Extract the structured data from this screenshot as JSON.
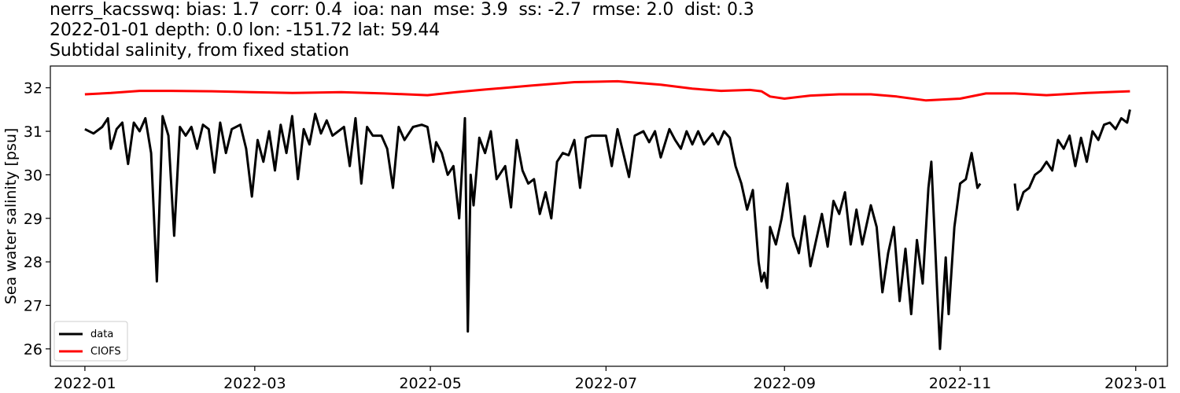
{
  "title_lines": [
    "nerrs_kacsswq: bias: 1.7  corr: 0.4  ioa: nan  mse: 3.9  ss: -2.7  rmse: 2.0  dist: 0.3",
    "2022-01-01 depth: 0.0 lon: -151.72 lat: 59.44",
    "Subtidal salinity, from fixed station"
  ],
  "colors": {
    "data": "#000000",
    "model": "#ff0000",
    "axes": "#000000"
  },
  "chart_data": {
    "type": "line",
    "title": "nerrs_kacsswq: bias: 1.7  corr: 0.4  ioa: nan  mse: 3.9  ss: -2.7  rmse: 2.0  dist: 0.3\n2022-01-01 depth: 0.0 lon: -151.72 lat: 59.44\nSubtidal salinity, from fixed station",
    "xlabel": "",
    "ylabel": "Sea water salinity [psu]",
    "x_type": "date",
    "xlim": [
      "2021-12-20",
      "2023-01-12"
    ],
    "ylim": [
      25.6,
      32.5
    ],
    "xticks": [
      "2022-01",
      "2022-03",
      "2022-05",
      "2022-07",
      "2022-09",
      "2022-11",
      "2023-01"
    ],
    "yticks": [
      26,
      27,
      28,
      29,
      30,
      31,
      32
    ],
    "grid": false,
    "legend": {
      "position": "lower-left",
      "entries": [
        "data",
        "CIOFS"
      ]
    },
    "series": [
      {
        "name": "data",
        "color": "#000000",
        "points": [
          [
            "2022-01-01",
            31.05
          ],
          [
            "2022-01-04",
            30.95
          ],
          [
            "2022-01-07",
            31.1
          ],
          [
            "2022-01-09",
            31.3
          ],
          [
            "2022-01-10",
            30.6
          ],
          [
            "2022-01-12",
            31.05
          ],
          [
            "2022-01-14",
            31.2
          ],
          [
            "2022-01-15",
            30.7
          ],
          [
            "2022-01-16",
            30.25
          ],
          [
            "2022-01-18",
            31.2
          ],
          [
            "2022-01-20",
            31.0
          ],
          [
            "2022-01-22",
            31.3
          ],
          [
            "2022-01-24",
            30.5
          ],
          [
            "2022-01-26",
            27.55
          ],
          [
            "2022-01-28",
            31.35
          ],
          [
            "2022-01-30",
            30.9
          ],
          [
            "2022-02-01",
            28.6
          ],
          [
            "2022-02-03",
            31.1
          ],
          [
            "2022-02-05",
            30.9
          ],
          [
            "2022-02-07",
            31.1
          ],
          [
            "2022-02-09",
            30.6
          ],
          [
            "2022-02-11",
            31.15
          ],
          [
            "2022-02-13",
            31.05
          ],
          [
            "2022-02-15",
            30.05
          ],
          [
            "2022-02-17",
            31.2
          ],
          [
            "2022-02-19",
            30.5
          ],
          [
            "2022-02-21",
            31.05
          ],
          [
            "2022-02-24",
            31.15
          ],
          [
            "2022-02-26",
            30.6
          ],
          [
            "2022-02-28",
            29.5
          ],
          [
            "2022-03-02",
            30.8
          ],
          [
            "2022-03-04",
            30.3
          ],
          [
            "2022-03-06",
            31.0
          ],
          [
            "2022-03-08",
            30.1
          ],
          [
            "2022-03-10",
            31.15
          ],
          [
            "2022-03-12",
            30.5
          ],
          [
            "2022-03-14",
            31.35
          ],
          [
            "2022-03-16",
            29.9
          ],
          [
            "2022-03-18",
            31.05
          ],
          [
            "2022-03-20",
            30.7
          ],
          [
            "2022-03-22",
            31.4
          ],
          [
            "2022-03-24",
            30.95
          ],
          [
            "2022-03-26",
            31.25
          ],
          [
            "2022-03-28",
            30.9
          ],
          [
            "2022-04-01",
            31.1
          ],
          [
            "2022-04-03",
            30.2
          ],
          [
            "2022-04-05",
            31.3
          ],
          [
            "2022-04-07",
            29.8
          ],
          [
            "2022-04-09",
            31.1
          ],
          [
            "2022-04-11",
            30.9
          ],
          [
            "2022-04-14",
            30.9
          ],
          [
            "2022-04-16",
            30.6
          ],
          [
            "2022-04-18",
            29.7
          ],
          [
            "2022-04-20",
            31.1
          ],
          [
            "2022-04-22",
            30.8
          ],
          [
            "2022-04-25",
            31.1
          ],
          [
            "2022-04-28",
            31.15
          ],
          [
            "2022-04-30",
            31.1
          ],
          [
            "2022-05-02",
            30.3
          ],
          [
            "2022-05-03",
            30.75
          ],
          [
            "2022-05-05",
            30.5
          ],
          [
            "2022-05-07",
            30.0
          ],
          [
            "2022-05-09",
            30.2
          ],
          [
            "2022-05-11",
            29.0
          ],
          [
            "2022-05-13",
            31.3
          ],
          [
            "2022-05-14",
            26.4
          ],
          [
            "2022-05-15",
            30.0
          ],
          [
            "2022-05-16",
            29.3
          ],
          [
            "2022-05-18",
            30.85
          ],
          [
            "2022-05-20",
            30.5
          ],
          [
            "2022-05-22",
            31.0
          ],
          [
            "2022-05-24",
            29.9
          ],
          [
            "2022-05-27",
            30.2
          ],
          [
            "2022-05-29",
            29.25
          ],
          [
            "2022-05-31",
            30.8
          ],
          [
            "2022-06-02",
            30.1
          ],
          [
            "2022-06-04",
            29.8
          ],
          [
            "2022-06-06",
            29.9
          ],
          [
            "2022-06-08",
            29.1
          ],
          [
            "2022-06-10",
            29.6
          ],
          [
            "2022-06-12",
            29.0
          ],
          [
            "2022-06-14",
            30.3
          ],
          [
            "2022-06-16",
            30.5
          ],
          [
            "2022-06-18",
            30.45
          ],
          [
            "2022-06-20",
            30.8
          ],
          [
            "2022-06-22",
            29.7
          ],
          [
            "2022-06-24",
            30.85
          ],
          [
            "2022-06-26",
            30.9
          ],
          [
            "2022-06-29",
            30.9
          ],
          [
            "2022-07-01",
            30.9
          ],
          [
            "2022-07-03",
            30.2
          ],
          [
            "2022-07-05",
            31.05
          ],
          [
            "2022-07-07",
            30.5
          ],
          [
            "2022-07-09",
            29.95
          ],
          [
            "2022-07-11",
            30.9
          ],
          [
            "2022-07-14",
            31.0
          ],
          [
            "2022-07-16",
            30.75
          ],
          [
            "2022-07-18",
            31.0
          ],
          [
            "2022-07-20",
            30.4
          ],
          [
            "2022-07-23",
            31.05
          ],
          [
            "2022-07-25",
            30.8
          ],
          [
            "2022-07-27",
            30.6
          ],
          [
            "2022-07-29",
            31.0
          ],
          [
            "2022-07-31",
            30.7
          ],
          [
            "2022-08-02",
            31.0
          ],
          [
            "2022-08-04",
            30.7
          ],
          [
            "2022-08-07",
            30.95
          ],
          [
            "2022-08-09",
            30.7
          ],
          [
            "2022-08-11",
            31.0
          ],
          [
            "2022-08-13",
            30.85
          ],
          [
            "2022-08-15",
            30.2
          ],
          [
            "2022-08-17",
            29.8
          ],
          [
            "2022-08-19",
            29.2
          ],
          [
            "2022-08-21",
            29.65
          ],
          [
            "2022-08-23",
            28.0
          ],
          [
            "2022-08-24",
            27.55
          ],
          [
            "2022-08-25",
            27.75
          ],
          [
            "2022-08-26",
            27.4
          ],
          [
            "2022-08-27",
            28.8
          ],
          [
            "2022-08-29",
            28.4
          ],
          [
            "2022-08-31",
            29.0
          ],
          [
            "2022-09-02",
            29.8
          ],
          [
            "2022-09-04",
            28.6
          ],
          [
            "2022-09-06",
            28.2
          ],
          [
            "2022-09-08",
            29.05
          ],
          [
            "2022-09-10",
            27.9
          ],
          [
            "2022-09-12",
            28.5
          ],
          [
            "2022-09-14",
            29.1
          ],
          [
            "2022-09-16",
            28.35
          ],
          [
            "2022-09-18",
            29.4
          ],
          [
            "2022-09-20",
            29.1
          ],
          [
            "2022-09-22",
            29.6
          ],
          [
            "2022-09-24",
            28.4
          ],
          [
            "2022-09-26",
            29.2
          ],
          [
            "2022-09-28",
            28.4
          ],
          [
            "2022-10-01",
            29.3
          ],
          [
            "2022-10-03",
            28.8
          ],
          [
            "2022-10-05",
            27.3
          ],
          [
            "2022-10-07",
            28.2
          ],
          [
            "2022-10-09",
            28.8
          ],
          [
            "2022-10-11",
            27.1
          ],
          [
            "2022-10-13",
            28.3
          ],
          [
            "2022-10-15",
            26.8
          ],
          [
            "2022-10-17",
            28.5
          ],
          [
            "2022-10-19",
            27.5
          ],
          [
            "2022-10-21",
            29.7
          ],
          [
            "2022-10-22",
            30.3
          ],
          [
            "2022-10-24",
            27.4
          ],
          [
            "2022-10-25",
            26.0
          ],
          [
            "2022-10-27",
            28.1
          ],
          [
            "2022-10-28",
            26.8
          ],
          [
            "2022-10-30",
            28.8
          ],
          [
            "2022-11-01",
            29.8
          ],
          [
            "2022-11-03",
            29.9
          ],
          [
            "2022-11-05",
            30.5
          ],
          [
            "2022-11-07",
            29.7
          ],
          [
            "2022-11-08",
            29.8
          ],
          [
            "2022-11-18",
            null
          ],
          [
            "2022-11-20",
            29.8
          ],
          [
            "2022-11-21",
            29.2
          ],
          [
            "2022-11-23",
            29.6
          ],
          [
            "2022-11-25",
            29.7
          ],
          [
            "2022-11-27",
            30.0
          ],
          [
            "2022-11-29",
            30.1
          ],
          [
            "2022-12-01",
            30.3
          ],
          [
            "2022-12-03",
            30.1
          ],
          [
            "2022-12-05",
            30.8
          ],
          [
            "2022-12-07",
            30.6
          ],
          [
            "2022-12-09",
            30.9
          ],
          [
            "2022-12-11",
            30.2
          ],
          [
            "2022-12-13",
            30.85
          ],
          [
            "2022-12-15",
            30.3
          ],
          [
            "2022-12-17",
            31.0
          ],
          [
            "2022-12-19",
            30.8
          ],
          [
            "2022-12-21",
            31.15
          ],
          [
            "2022-12-23",
            31.2
          ],
          [
            "2022-12-25",
            31.05
          ],
          [
            "2022-12-27",
            31.3
          ],
          [
            "2022-12-29",
            31.2
          ],
          [
            "2022-12-30",
            31.5
          ]
        ]
      },
      {
        "name": "CIOFS",
        "color": "#ff0000",
        "points": [
          [
            "2022-01-01",
            31.85
          ],
          [
            "2022-01-10",
            31.88
          ],
          [
            "2022-01-20",
            31.93
          ],
          [
            "2022-01-31",
            31.93
          ],
          [
            "2022-02-14",
            31.92
          ],
          [
            "2022-02-28",
            31.9
          ],
          [
            "2022-03-14",
            31.88
          ],
          [
            "2022-03-31",
            31.9
          ],
          [
            "2022-04-15",
            31.87
          ],
          [
            "2022-04-30",
            31.83
          ],
          [
            "2022-05-10",
            31.9
          ],
          [
            "2022-05-20",
            31.96
          ],
          [
            "2022-06-05",
            32.05
          ],
          [
            "2022-06-20",
            32.13
          ],
          [
            "2022-07-05",
            32.15
          ],
          [
            "2022-07-20",
            32.07
          ],
          [
            "2022-07-31",
            31.98
          ],
          [
            "2022-08-10",
            31.93
          ],
          [
            "2022-08-20",
            31.95
          ],
          [
            "2022-08-24",
            31.92
          ],
          [
            "2022-08-27",
            31.8
          ],
          [
            "2022-09-01",
            31.75
          ],
          [
            "2022-09-10",
            31.82
          ],
          [
            "2022-09-20",
            31.85
          ],
          [
            "2022-10-01",
            31.85
          ],
          [
            "2022-10-10",
            31.8
          ],
          [
            "2022-10-20",
            31.71
          ],
          [
            "2022-11-01",
            31.75
          ],
          [
            "2022-11-10",
            31.87
          ],
          [
            "2022-11-20",
            31.87
          ],
          [
            "2022-12-01",
            31.83
          ],
          [
            "2022-12-15",
            31.88
          ],
          [
            "2022-12-30",
            31.92
          ]
        ]
      }
    ]
  }
}
